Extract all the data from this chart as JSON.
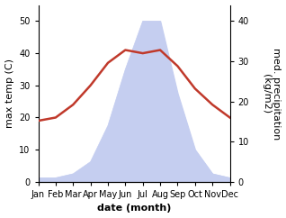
{
  "months": [
    "Jan",
    "Feb",
    "Mar",
    "Apr",
    "May",
    "Jun",
    "Jul",
    "Aug",
    "Sep",
    "Oct",
    "Nov",
    "Dec"
  ],
  "month_positions": [
    1,
    2,
    3,
    4,
    5,
    6,
    7,
    8,
    9,
    10,
    11,
    12
  ],
  "temperature": [
    19,
    20,
    24,
    30,
    37,
    41,
    40,
    41,
    36,
    29,
    24,
    20
  ],
  "precipitation": [
    1,
    1,
    2,
    5,
    14,
    28,
    40,
    40,
    22,
    8,
    2,
    1
  ],
  "temp_color": "#c0392b",
  "precip_fill_color": "#c5cef0",
  "temp_ylim": [
    0,
    55
  ],
  "precip_ylim": [
    0,
    44
  ],
  "temp_yticks": [
    0,
    10,
    20,
    30,
    40,
    50
  ],
  "precip_yticks": [
    0,
    10,
    20,
    30,
    40
  ],
  "xlabel": "date (month)",
  "ylabel_left": "max temp (C)",
  "ylabel_right": "med. precipitation\n(kg/m2)",
  "background_color": "#ffffff",
  "xlabel_fontsize": 8,
  "ylabel_fontsize": 8,
  "tick_fontsize": 7,
  "linewidth": 1.8
}
